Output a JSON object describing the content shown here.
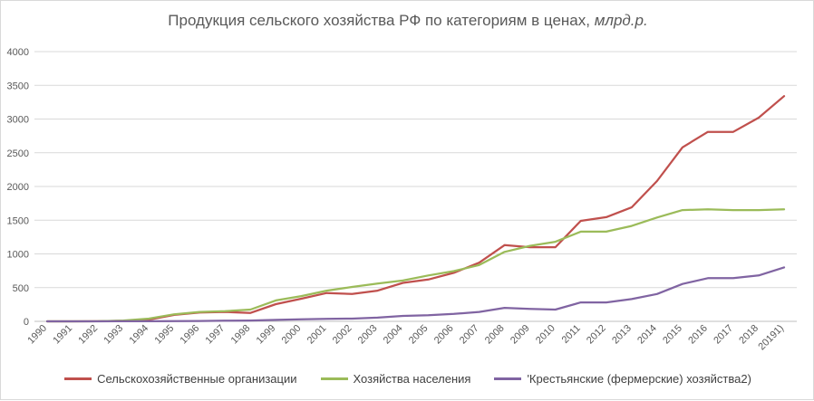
{
  "chart_data": {
    "type": "line",
    "title_main": "Продукция сельского хозяйства РФ по категориям в ценах,",
    "title_unit": "млрд.р.",
    "x": [
      "1990",
      "1991",
      "1992",
      "1993",
      "1994",
      "1995",
      "1996",
      "1997",
      "1998",
      "1999",
      "2000",
      "2001",
      "2002",
      "2003",
      "2004",
      "2005",
      "2006",
      "2007",
      "2008",
      "2009",
      "2010",
      "2011",
      "2012",
      "2013",
      "2014",
      "2015",
      "2016",
      "2017",
      "2018",
      "20191)"
    ],
    "ylim": [
      0,
      4000
    ],
    "yticks": [
      0,
      500,
      1000,
      1500,
      2000,
      2500,
      3000,
      3500,
      4000
    ],
    "grid": true,
    "legend_position": "bottom",
    "series": [
      {
        "name": "Сельскохозяйственные организации",
        "color": "#c0504d",
        "values": [
          0,
          0,
          1,
          8,
          25,
          95,
          130,
          140,
          125,
          255,
          335,
          420,
          405,
          455,
          570,
          620,
          720,
          870,
          1130,
          1100,
          1100,
          1490,
          1545,
          1690,
          2080,
          2580,
          2810,
          2810,
          3020,
          3340
        ]
      },
      {
        "name": "Хозяйства населения",
        "color": "#9bbb59",
        "values": [
          0,
          0,
          2,
          12,
          40,
          105,
          140,
          150,
          175,
          310,
          375,
          455,
          510,
          560,
          605,
          680,
          745,
          835,
          1030,
          1120,
          1180,
          1330,
          1330,
          1415,
          1540,
          1650,
          1660,
          1650,
          1650,
          1660
        ]
      },
      {
        "name": "'Крестьянские (фермерские) хозяйства2)",
        "color": "#8064a2",
        "values": [
          0,
          0,
          0,
          1,
          2,
          4,
          6,
          10,
          12,
          22,
          30,
          38,
          40,
          55,
          80,
          90,
          110,
          140,
          200,
          185,
          175,
          280,
          280,
          330,
          405,
          555,
          640,
          640,
          680,
          800
        ]
      }
    ]
  }
}
